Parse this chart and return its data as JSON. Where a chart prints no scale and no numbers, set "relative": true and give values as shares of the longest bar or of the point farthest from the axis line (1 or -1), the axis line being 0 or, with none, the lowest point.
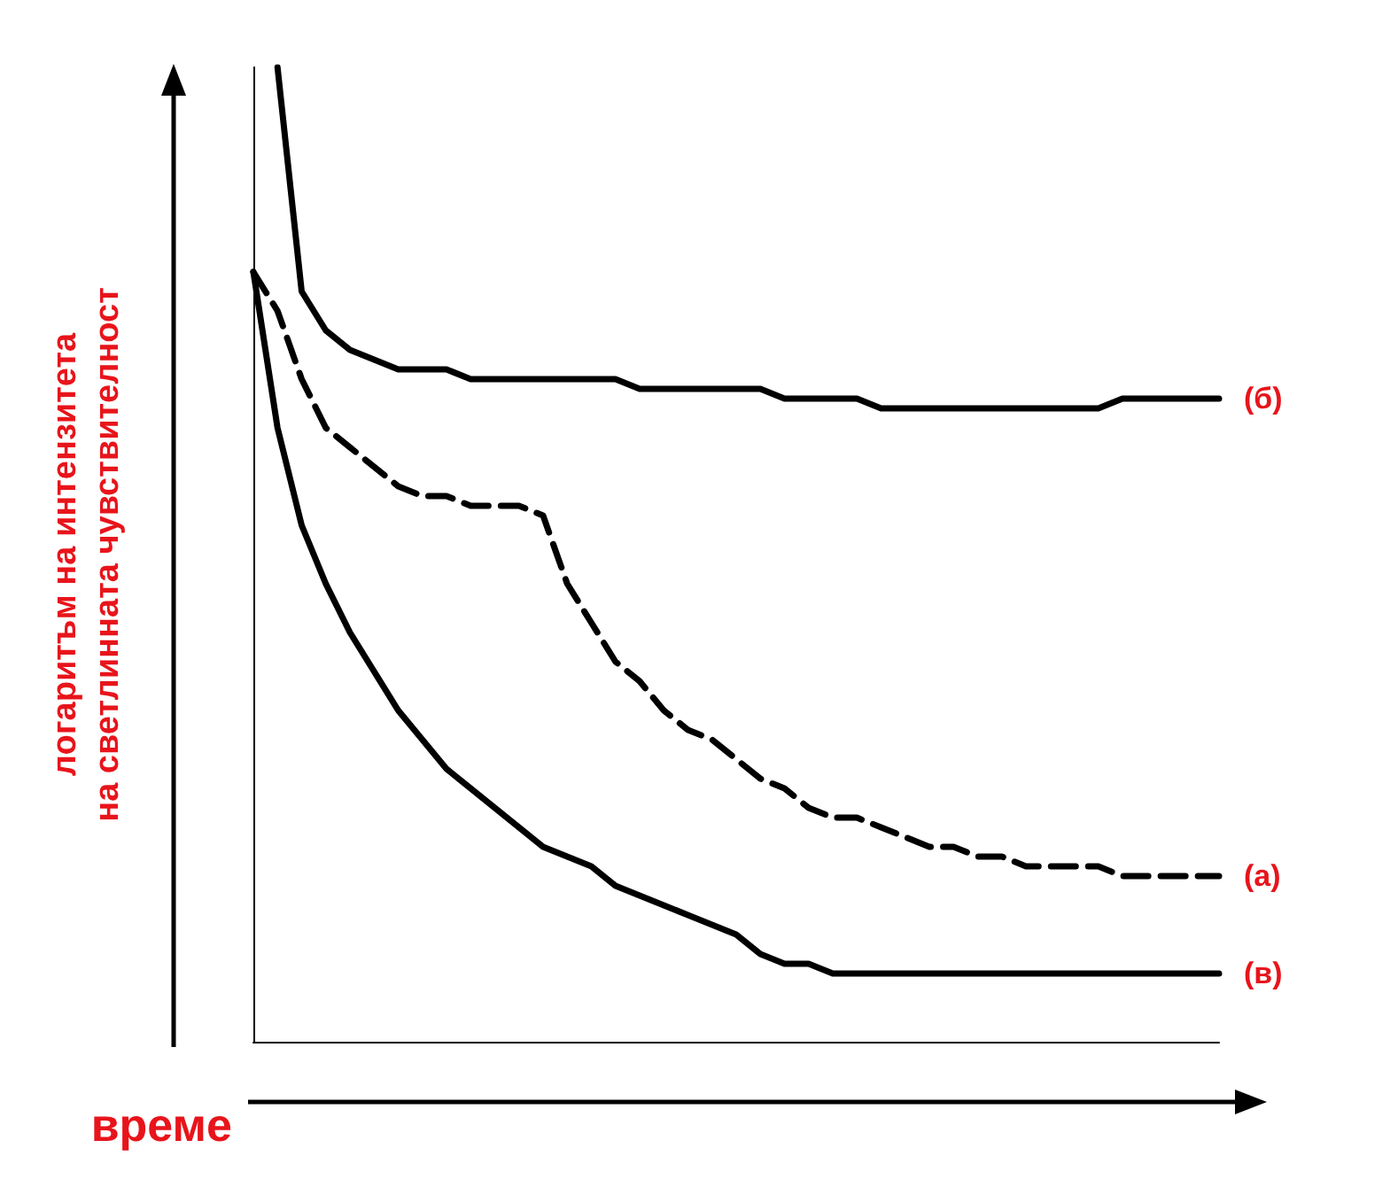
{
  "chart_data": {
    "type": "line",
    "relative": true,
    "xlabel": "време",
    "ylabel": "логаритъм на интензитета\nна светлинната чувствителност",
    "categories": [
      null,
      null,
      null,
      null,
      null,
      null,
      null,
      null,
      null,
      null,
      null,
      null,
      null,
      null,
      null,
      null,
      null,
      null,
      null,
      null,
      null,
      null,
      null,
      null,
      null,
      null,
      null,
      null,
      null,
      null,
      null,
      null,
      null,
      null,
      null,
      null,
      null,
      null,
      null,
      null,
      null
    ],
    "series": [
      {
        "name": "(б)",
        "color": "#000000",
        "line_style": "solid",
        "values": [
          null,
          1.0,
          0.77,
          0.73,
          0.71,
          0.7,
          0.69,
          0.69,
          0.69,
          0.68,
          0.68,
          0.68,
          0.68,
          0.68,
          0.68,
          0.68,
          0.67,
          0.67,
          0.67,
          0.67,
          0.67,
          0.67,
          0.66,
          0.66,
          0.66,
          0.66,
          0.65,
          0.65,
          0.65,
          0.65,
          0.65,
          0.65,
          0.65,
          0.65,
          0.65,
          0.65,
          0.66,
          0.66,
          0.66,
          0.66,
          0.66
        ]
      },
      {
        "name": "(а)",
        "color": "#000000",
        "line_style": "dashed",
        "values": [
          0.79,
          0.75,
          0.68,
          0.63,
          0.61,
          0.59,
          0.57,
          0.56,
          0.56,
          0.55,
          0.55,
          0.55,
          0.54,
          0.47,
          0.43,
          0.39,
          0.37,
          0.34,
          0.32,
          0.31,
          0.29,
          0.27,
          0.26,
          0.24,
          0.23,
          0.23,
          0.22,
          0.21,
          0.2,
          0.2,
          0.19,
          0.19,
          0.18,
          0.18,
          0.18,
          0.18,
          0.17,
          0.17,
          0.17,
          0.17,
          0.17
        ]
      },
      {
        "name": "(в)",
        "color": "#000000",
        "line_style": "solid",
        "values": [
          0.79,
          0.63,
          0.53,
          0.47,
          0.42,
          0.38,
          0.34,
          0.31,
          0.28,
          0.26,
          0.24,
          0.22,
          0.2,
          0.19,
          0.18,
          0.16,
          0.15,
          0.14,
          0.13,
          0.12,
          0.11,
          0.09,
          0.08,
          0.08,
          0.07,
          0.07,
          0.07,
          0.07,
          0.07,
          0.07,
          0.07,
          0.07,
          0.07,
          0.07,
          0.07,
          0.07,
          0.07,
          0.07,
          0.07,
          0.07,
          0.07
        ]
      }
    ],
    "legend": false,
    "grid": false,
    "marker": "none"
  }
}
